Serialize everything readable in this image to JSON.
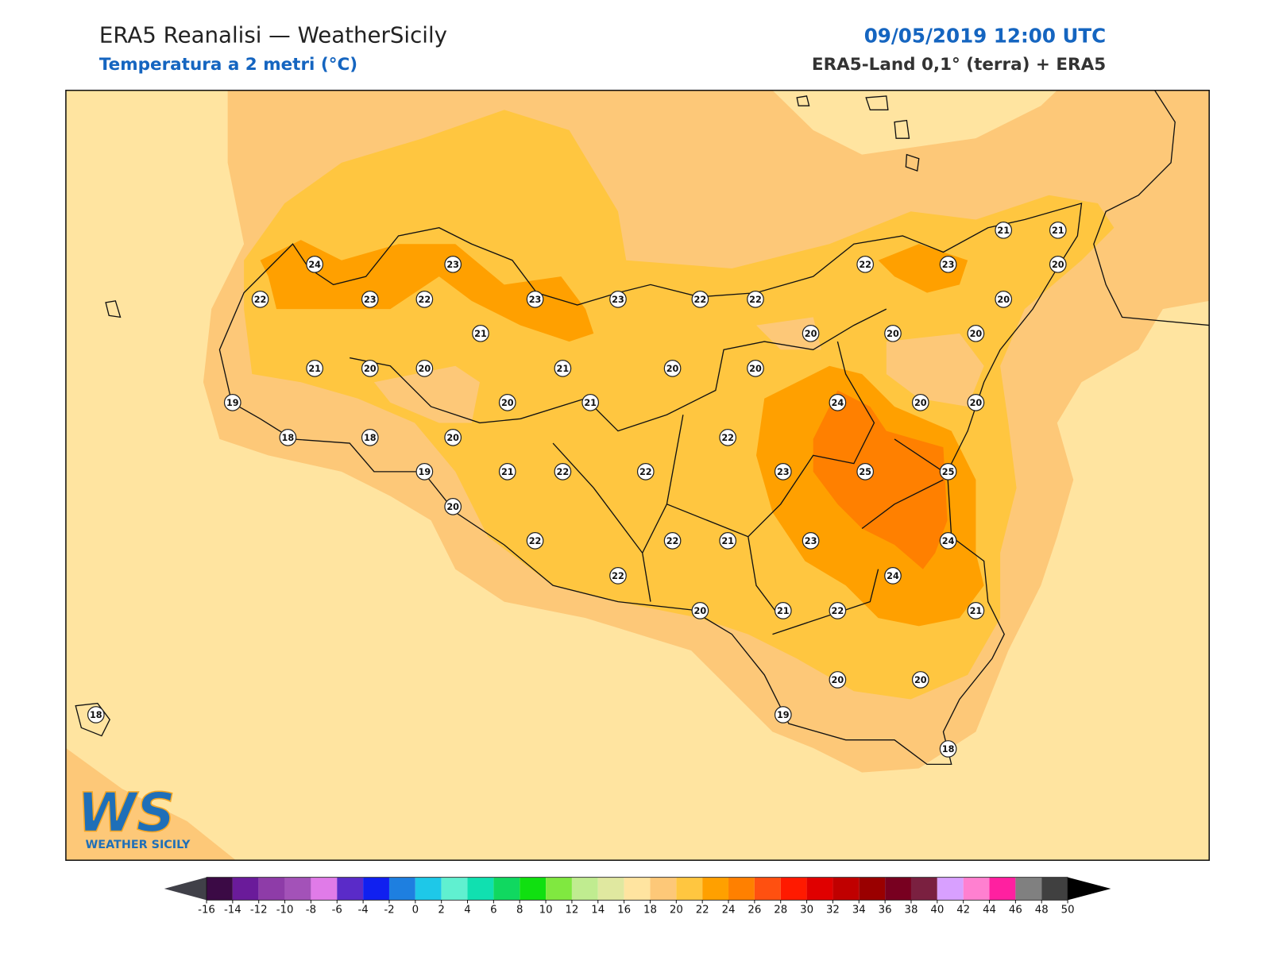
{
  "header": {
    "title": "ERA5 Reanalisi — WeatherSicily",
    "subtitle": "Temperatura a 2 metri (°C)",
    "datetime": "09/05/2019 12:00 UTC",
    "source": "ERA5-Land 0,1° (terra) + ERA5"
  },
  "map": {
    "stations": [
      24,
      23,
      22,
      23,
      22,
      23,
      23,
      22,
      22,
      22,
      23,
      21,
      21,
      20,
      20,
      21,
      20,
      20,
      20,
      21,
      20,
      20,
      21,
      20,
      20,
      19,
      20,
      21,
      24,
      20,
      20,
      18,
      18,
      20,
      22,
      19,
      21,
      22,
      22,
      23,
      25,
      25,
      20,
      22,
      22,
      21,
      23,
      24,
      22,
      24,
      20,
      21,
      22,
      21,
      20,
      20,
      19,
      18,
      18
    ]
  },
  "colorbar": {
    "ticks": [
      -16,
      -14,
      -12,
      -10,
      -8,
      -6,
      -4,
      -2,
      0,
      2,
      4,
      6,
      8,
      10,
      12,
      14,
      16,
      18,
      20,
      22,
      24,
      26,
      28,
      30,
      32,
      34,
      36,
      38,
      40,
      42,
      44,
      46,
      48,
      50
    ],
    "colors": [
      "#3b0a45",
      "#6a1b9a",
      "#8e3ca8",
      "#a352b8",
      "#e07be8",
      "#5a2bc8",
      "#1020f0",
      "#1e7fe0",
      "#1ec8e8",
      "#60f0d0",
      "#10e0b0",
      "#10d860",
      "#10e010",
      "#80e840",
      "#c0ec90",
      "#e0e8a0",
      "#ffe4a0",
      "#fdc878",
      "#ffc640",
      "#ffa000",
      "#ff8000",
      "#ff5010",
      "#ff1a00",
      "#e00000",
      "#c00000",
      "#9a0000",
      "#780020",
      "#7a2040",
      "#d8a0ff",
      "#ff80d0",
      "#ff20a0",
      "#808080",
      "#404040"
    ],
    "under_color": "#404048",
    "over_color": "#000000"
  },
  "logo": {
    "mark": "WS",
    "name": "WEATHER SICILY"
  }
}
